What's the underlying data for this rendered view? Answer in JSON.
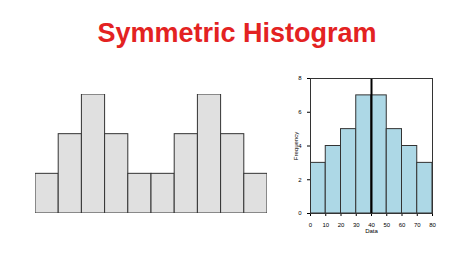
{
  "title": "Symmetric Histogram",
  "chart_data": [
    {
      "type": "histogram",
      "bins": [
        0,
        1,
        2,
        3,
        4,
        5,
        6,
        7,
        8,
        9,
        10
      ],
      "values": [
        1,
        2,
        3,
        2,
        1,
        1,
        2,
        3,
        2,
        1
      ],
      "color": "#e0e0e0",
      "xlim": [
        0,
        10
      ],
      "ylim": [
        0,
        3
      ],
      "tick_labels": false
    },
    {
      "type": "histogram",
      "bins": [
        0,
        10,
        20,
        30,
        40,
        50,
        60,
        70,
        80
      ],
      "values": [
        3,
        4,
        5,
        7,
        7,
        5,
        4,
        3
      ],
      "color": "#add8e6",
      "xlabel": "Data",
      "ylabel": "Frequency",
      "xlim": [
        0,
        80
      ],
      "xticks": [
        0,
        10,
        20,
        30,
        40,
        50,
        60,
        70,
        80
      ],
      "ylim": [
        0,
        8
      ],
      "yticks": [
        0,
        2,
        4,
        6,
        8
      ],
      "vline": 40
    }
  ]
}
